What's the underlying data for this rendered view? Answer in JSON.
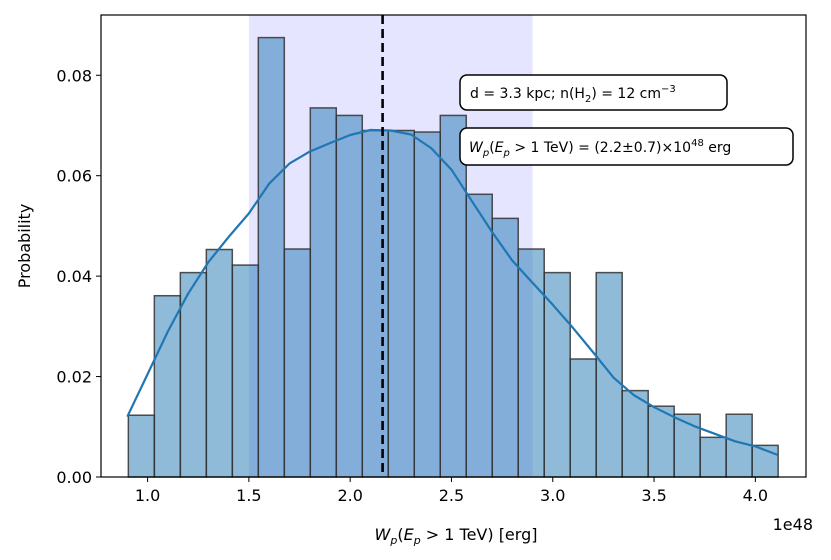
{
  "chart_data": {
    "type": "bar",
    "bin_edges": [
      0.905,
      1.0333,
      1.1616,
      1.2899,
      1.4182,
      1.5465,
      1.6748,
      1.8031,
      1.9314,
      2.0597,
      2.188,
      2.3163,
      2.4446,
      2.5729,
      2.7012,
      2.8295,
      2.9578,
      3.0861,
      3.2144,
      3.3427,
      3.471,
      3.5993,
      3.7276,
      3.8559,
      3.9842,
      4.1125
    ],
    "values": [
      0.0123,
      0.0361,
      0.0407,
      0.0453,
      0.0422,
      0.0875,
      0.0454,
      0.0735,
      0.072,
      0.069,
      0.069,
      0.0687,
      0.072,
      0.0563,
      0.0515,
      0.0454,
      0.0407,
      0.0235,
      0.0407,
      0.0172,
      0.0141,
      0.0125,
      0.0079,
      0.0125,
      0.0063
    ],
    "kde": {
      "x": [
        0.9,
        1.0,
        1.1,
        1.2,
        1.3,
        1.4,
        1.5,
        1.6,
        1.7,
        1.8,
        1.9,
        2.0,
        2.1,
        2.2,
        2.3,
        2.4,
        2.5,
        2.6,
        2.7,
        2.8,
        2.9,
        3.0,
        3.1,
        3.2,
        3.3,
        3.4,
        3.5,
        3.6,
        3.7,
        3.8,
        3.9,
        4.0,
        4.11
      ],
      "y": [
        0.012,
        0.0205,
        0.029,
        0.0365,
        0.0428,
        0.0478,
        0.0525,
        0.0584,
        0.0624,
        0.0648,
        0.0665,
        0.0681,
        0.0691,
        0.069,
        0.0682,
        0.0655,
        0.0612,
        0.055,
        0.0488,
        0.0431,
        0.0387,
        0.0343,
        0.0297,
        0.0248,
        0.0198,
        0.0163,
        0.0139,
        0.0119,
        0.0101,
        0.0086,
        0.0071,
        0.0061,
        0.0044
      ]
    },
    "shaded_band": [
      1.5,
      2.9
    ],
    "vline": 2.16,
    "xlim": [
      0.77,
      4.25
    ],
    "ylim": [
      0.0,
      0.092
    ],
    "xticks": [
      1.0,
      1.5,
      2.0,
      2.5,
      3.0,
      3.5,
      4.0
    ],
    "yticks": [
      0.0,
      0.02,
      0.04,
      0.06,
      0.08
    ],
    "xtick_labels": [
      "1.0",
      "1.5",
      "2.0",
      "2.5",
      "3.0",
      "3.5",
      "4.0"
    ],
    "ytick_labels": [
      "0.00",
      "0.02",
      "0.04",
      "0.06",
      "0.08"
    ],
    "x_offset_label": "1e48",
    "xlabel": {
      "w": "W",
      "w_sub": "p",
      "open": "(",
      "e": "E",
      "e_sub": "p",
      "rest": " > 1 TeV) [erg]"
    },
    "ylabel": "Probability",
    "annotation_1": {
      "text": "d = 3.3 kpc; n(H",
      "sub": "2",
      "mid": ") = 12 cm",
      "sup": "−3"
    },
    "annotation_2": {
      "w": "W",
      "w_sub": "p",
      "open": "(",
      "e": "E",
      "e_sub": "p",
      "mid": " > 1 TeV) = (2.2±0.7)×10",
      "sup": "48",
      "end": " erg"
    },
    "colors": {
      "bar_fill": "#1f77b4",
      "bar_alpha": 0.5,
      "bar_edge": "#333333",
      "kde_line": "#1f77b4",
      "band": "#0000ff",
      "band_alpha": 0.1,
      "vline": "#000000"
    },
    "grid": false
  }
}
